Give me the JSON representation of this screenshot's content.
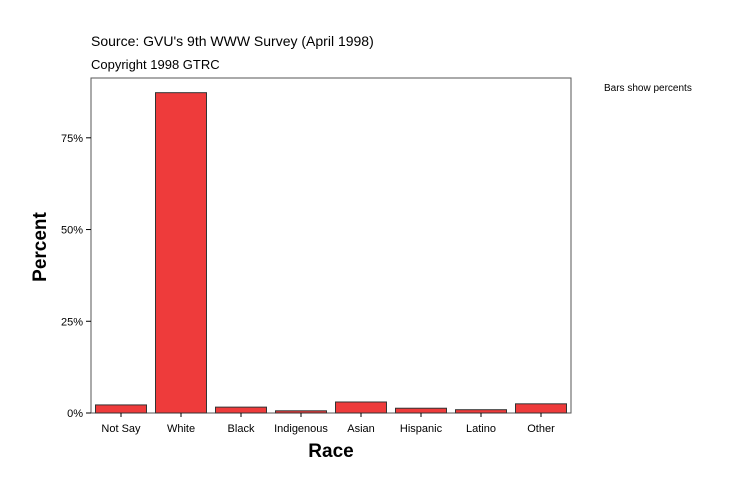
{
  "header": {
    "source": "Source: GVU's 9th WWW Survey (April 1998)",
    "copyright": "Copyright 1998 GTRC"
  },
  "legend_note": "Bars show percents",
  "colors": {
    "bar": "#ee3b3b",
    "bar_stroke": "#333333",
    "frame": "#555555"
  },
  "chart_data": {
    "type": "bar",
    "categories": [
      "Not Say",
      "White",
      "Black",
      "Indigenous",
      "Asian",
      "Hispanic",
      "Latino",
      "Other"
    ],
    "values": [
      2.2,
      87.3,
      1.6,
      0.6,
      3.0,
      1.3,
      0.9,
      2.5
    ],
    "xlabel": "Race",
    "ylabel": "Percent",
    "ylim": [
      0,
      91.3
    ],
    "yticks": [
      0,
      25,
      50,
      75
    ],
    "ytick_labels": [
      "0%",
      "25%",
      "50%",
      "75%"
    ],
    "grid": false
  }
}
